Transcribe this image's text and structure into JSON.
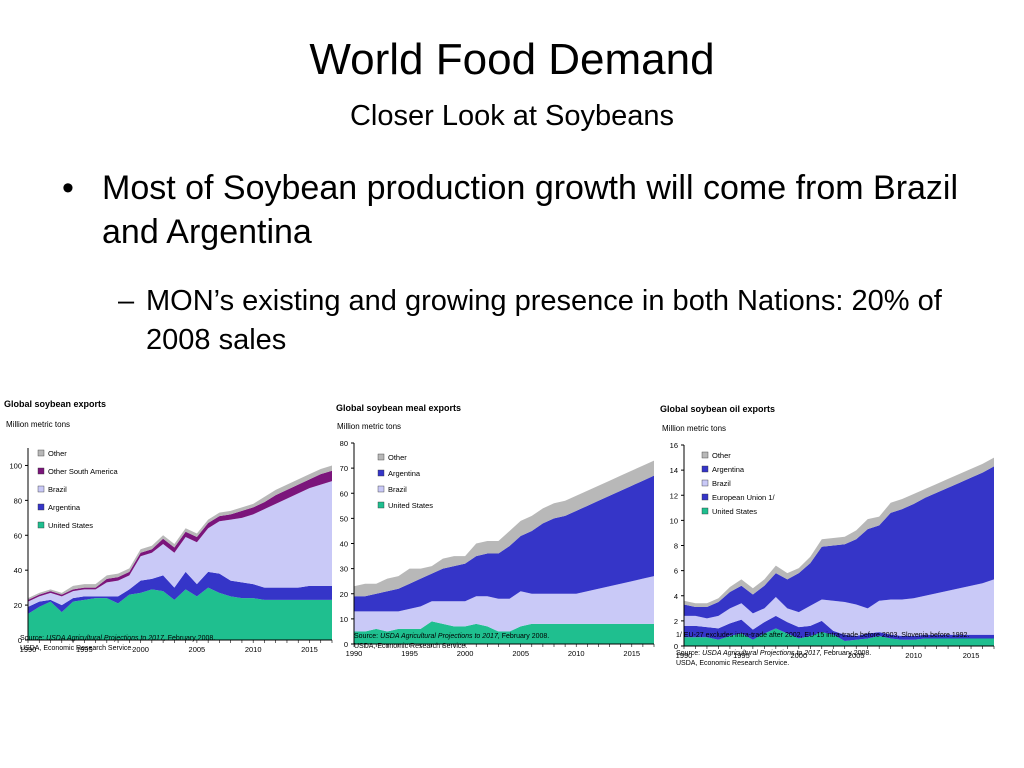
{
  "slide": {
    "title": "World Food Demand",
    "subtitle": "Closer Look at Soybeans",
    "bullet1": "Most of Soybean production growth will come from Brazil and Argentina",
    "bullet2": "MON’s existing and growing presence in both Nations: 20% of 2008 sales",
    "bullet_marker": "•",
    "dash_marker": "–"
  },
  "colors": {
    "United States": "#1fbf8f",
    "Argentina": "#3535c8",
    "Brazil": "#c9c9f7",
    "Other South America": "#7b157b",
    "Other": "#b8b8b8",
    "European Union 1/": "#3535c8"
  },
  "chart_data": [
    {
      "type": "area",
      "title": "Global soybean exports",
      "ylabel": "Million metric tons",
      "ylim": [
        0,
        110
      ],
      "yticks": [
        0,
        20,
        40,
        60,
        80,
        100
      ],
      "xlim": [
        1990,
        2017
      ],
      "xticks": [
        1990,
        1995,
        2000,
        2005,
        2010,
        2015
      ],
      "legend_order": [
        "Other",
        "Other South America",
        "Brazil",
        "Argentina",
        "United States"
      ],
      "x": [
        1990,
        1991,
        1992,
        1993,
        1994,
        1995,
        1996,
        1997,
        1998,
        1999,
        2000,
        2001,
        2002,
        2003,
        2004,
        2005,
        2006,
        2007,
        2008,
        2009,
        2010,
        2011,
        2012,
        2013,
        2014,
        2015,
        2016,
        2017
      ],
      "series": [
        {
          "name": "United States",
          "values": [
            15,
            19,
            22,
            16,
            22,
            23,
            24,
            24,
            21,
            26,
            27,
            29,
            28,
            23,
            29,
            25,
            30,
            27,
            25,
            24,
            24,
            23,
            23,
            23,
            23,
            23,
            23,
            23
          ]
        },
        {
          "name": "Argentina",
          "values": [
            4,
            3,
            1,
            4,
            2,
            2,
            1,
            1,
            4,
            3,
            7,
            6,
            9,
            7,
            10,
            7,
            9,
            11,
            9,
            9,
            8,
            7,
            7,
            7,
            7,
            8,
            8,
            8
          ]
        },
        {
          "name": "Brazil",
          "values": [
            3,
            3,
            4,
            5,
            4,
            4,
            4,
            8,
            9,
            8,
            14,
            15,
            18,
            20,
            20,
            24,
            25,
            30,
            35,
            37,
            40,
            45,
            48,
            51,
            54,
            56,
            58,
            60
          ]
        },
        {
          "name": "Other South America",
          "values": [
            1,
            1,
            1,
            1,
            1,
            1,
            1,
            2,
            2,
            2,
            2,
            2,
            3,
            3,
            3,
            3,
            3,
            3,
            3,
            4,
            4,
            4,
            5,
            5,
            5,
            5,
            6,
            6
          ]
        },
        {
          "name": "Other",
          "values": [
            1,
            1,
            1,
            1,
            2,
            2,
            2,
            2,
            2,
            2,
            2,
            2,
            2,
            2,
            2,
            2,
            2,
            2,
            2,
            2,
            2,
            3,
            3,
            3,
            3,
            3,
            3,
            3
          ]
        }
      ],
      "source_label": "Source:",
      "source_title": "USDA Agricultural Projections to 2017,",
      "source_date": "February 2008.",
      "source_line2": "USDA, Economic Research Service."
    },
    {
      "type": "area",
      "title": "Global soybean meal exports",
      "ylabel": "Million metric tons",
      "ylim": [
        0,
        80
      ],
      "yticks": [
        0,
        10,
        20,
        30,
        40,
        50,
        60,
        70,
        80
      ],
      "xlim": [
        1990,
        2017
      ],
      "xticks": [
        1990,
        1995,
        2000,
        2005,
        2010,
        2015
      ],
      "legend_order": [
        "Other",
        "Argentina",
        "Brazil",
        "United States"
      ],
      "x": [
        1990,
        1991,
        1992,
        1993,
        1994,
        1995,
        1996,
        1997,
        1998,
        1999,
        2000,
        2001,
        2002,
        2003,
        2004,
        2005,
        2006,
        2007,
        2008,
        2009,
        2010,
        2011,
        2012,
        2013,
        2014,
        2015,
        2016,
        2017
      ],
      "series": [
        {
          "name": "United States",
          "values": [
            5,
            5,
            6,
            5,
            6,
            6,
            6,
            9,
            8,
            7,
            7,
            8,
            7,
            5,
            5,
            7,
            8,
            8,
            8,
            8,
            8,
            8,
            8,
            8,
            8,
            8,
            8,
            8
          ]
        },
        {
          "name": "Brazil",
          "values": [
            8,
            8,
            7,
            8,
            7,
            8,
            9,
            8,
            9,
            10,
            10,
            11,
            12,
            13,
            13,
            14,
            12,
            12,
            12,
            12,
            12,
            13,
            14,
            15,
            16,
            17,
            18,
            19
          ]
        },
        {
          "name": "Argentina",
          "values": [
            6,
            6,
            7,
            8,
            9,
            10,
            11,
            11,
            13,
            14,
            15,
            16,
            17,
            18,
            21,
            22,
            25,
            28,
            30,
            31,
            33,
            34,
            35,
            36,
            37,
            38,
            39,
            40
          ]
        },
        {
          "name": "Other",
          "values": [
            4,
            5,
            4,
            5,
            5,
            6,
            4,
            3,
            4,
            4,
            3,
            5,
            5,
            5,
            6,
            6,
            6,
            6,
            6,
            6,
            6,
            6,
            6,
            6,
            6,
            6,
            6,
            6
          ]
        }
      ],
      "source_label": "Source:",
      "source_title": "USDA Agricultural Projections to 2017,",
      "source_date": "February 2008.",
      "source_line2": "USDA, Economic Research Service."
    },
    {
      "type": "area",
      "title": "Global soybean oil exports",
      "ylabel": "Million metric tons",
      "ylim": [
        0,
        16
      ],
      "yticks": [
        0,
        2,
        4,
        6,
        8,
        10,
        12,
        14,
        16
      ],
      "xlim": [
        1990,
        2017
      ],
      "xticks": [
        1990,
        1995,
        2000,
        2005,
        2010,
        2015
      ],
      "legend_order": [
        "Other",
        "Argentina",
        "Brazil",
        "European Union 1/",
        "United States"
      ],
      "x": [
        1990,
        1991,
        1992,
        1993,
        1994,
        1995,
        1996,
        1997,
        1998,
        1999,
        2000,
        2001,
        2002,
        2003,
        2004,
        2005,
        2006,
        2007,
        2008,
        2009,
        2010,
        2011,
        2012,
        2013,
        2014,
        2015,
        2016,
        2017
      ],
      "series": [
        {
          "name": "United States",
          "values": [
            0.7,
            0.7,
            0.7,
            0.5,
            0.8,
            1.0,
            0.5,
            1.0,
            1.4,
            1.0,
            0.6,
            0.8,
            1.1,
            0.9,
            0.4,
            0.5,
            0.6,
            0.8,
            0.6,
            0.5,
            0.5,
            0.6,
            0.6,
            0.6,
            0.6,
            0.6,
            0.6,
            0.6
          ]
        },
        {
          "name": "European Union 1/",
          "values": [
            0.9,
            0.9,
            0.8,
            0.9,
            1.0,
            1.1,
            0.8,
            0.9,
            1.0,
            0.9,
            0.9,
            0.8,
            0.9,
            0.3,
            0.5,
            0.3,
            0.4,
            0.3,
            0.3,
            0.3,
            0.3,
            0.3,
            0.3,
            0.3,
            0.3,
            0.3,
            0.3,
            0.3
          ]
        },
        {
          "name": "Brazil",
          "values": [
            0.8,
            0.8,
            0.7,
            1.0,
            1.2,
            1.3,
            1.3,
            1.1,
            1.5,
            1.1,
            1.2,
            1.6,
            1.7,
            2.4,
            2.6,
            2.5,
            2.0,
            2.5,
            2.8,
            2.9,
            3.0,
            3.1,
            3.3,
            3.5,
            3.7,
            3.9,
            4.1,
            4.4
          ]
        },
        {
          "name": "Argentina",
          "values": [
            0.9,
            0.7,
            0.9,
            1.1,
            1.3,
            1.4,
            1.5,
            1.8,
            1.9,
            2.3,
            3.1,
            3.4,
            4.2,
            4.4,
            4.6,
            5.2,
            6.3,
            6.0,
            6.9,
            7.2,
            7.5,
            7.8,
            8.0,
            8.2,
            8.4,
            8.6,
            8.8,
            9.0
          ]
        },
        {
          "name": "Other",
          "values": [
            0.3,
            0.3,
            0.3,
            0.3,
            0.4,
            0.5,
            0.5,
            0.5,
            0.6,
            0.5,
            0.4,
            0.5,
            0.6,
            0.6,
            0.6,
            0.7,
            0.8,
            0.7,
            0.8,
            0.8,
            0.8,
            0.7,
            0.7,
            0.7,
            0.7,
            0.7,
            0.7,
            0.7
          ]
        }
      ],
      "footnote": "1/ EU-27 excludes intra-trade after 2002, EU-15 intra-trade before 2003, Slovenia before 1992.",
      "source_label": "Source:",
      "source_title": "USDA Agricultural Projections to 2017,",
      "source_date": "February 2008.",
      "source_line2": "USDA, Economic Research Service."
    }
  ]
}
